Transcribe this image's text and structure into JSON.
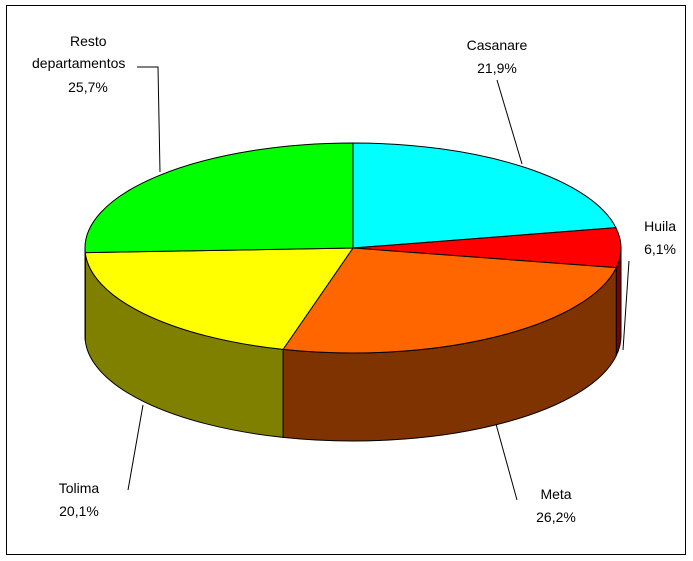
{
  "chart_data": {
    "type": "pie",
    "style": "3d-exploded-pie",
    "title": "",
    "slices": [
      {
        "name": "Casanare",
        "label": "21,9%",
        "value": 21.9,
        "color": "#00FFFF",
        "side_color": "#008080"
      },
      {
        "name": "Huila",
        "label": "6,1%",
        "value": 6.1,
        "color": "#FF0000",
        "side_color": "#800000"
      },
      {
        "name": "Meta",
        "label": "26,2%",
        "value": 26.2,
        "color": "#FF6600",
        "side_color": "#7F3300"
      },
      {
        "name": "Tolima",
        "label": "20,1%",
        "value": 20.1,
        "color": "#FFFF00",
        "side_color": "#808000"
      },
      {
        "name": "Resto departamentos",
        "label": "25,7%",
        "value": 25.7,
        "color": "#00FF00",
        "side_color": "#008000"
      }
    ],
    "label_lines": [
      {
        "name": "Resto",
        "line2": "departamentos",
        "label": "25,7%"
      }
    ],
    "legend": "none",
    "grid": false
  }
}
